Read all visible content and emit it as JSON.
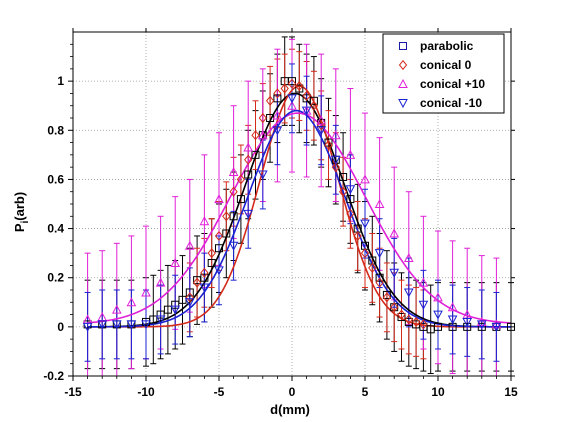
{
  "chart_data": {
    "type": "scatter",
    "xlabel": "d(mm)",
    "ylabel_main": "P",
    "ylabel_sub": "i",
    "ylabel_tail": "(arb)",
    "xlim": [
      -15,
      15
    ],
    "ylim": [
      -0.2,
      1.2
    ],
    "xticks": [
      -15,
      -10,
      -5,
      0,
      5,
      10,
      15
    ],
    "yticks": [
      -0.2,
      0,
      0.2,
      0.4,
      0.6,
      0.8,
      1
    ],
    "ytick_labels": [
      "-0.2",
      "0",
      "0.2",
      "0.4",
      "0.6",
      "0.8",
      "1"
    ],
    "grid": true,
    "legend_position": "top-right",
    "series": [
      {
        "name": "parabolic",
        "color": "#000000",
        "legend_color": "#1a1aa6",
        "marker": "square",
        "fit": {
          "amplitude": 0.95,
          "center": 0.2,
          "sigma": 3.4,
          "offset": 0.0
        },
        "x": [
          -14,
          -13,
          -12,
          -11,
          -10,
          -9.5,
          -9,
          -8.5,
          -8,
          -7.5,
          -7,
          -6.5,
          -6,
          -5.5,
          -5,
          -4.5,
          -4,
          -3.5,
          -3,
          -2.5,
          -2,
          -1.5,
          -1,
          -0.5,
          0,
          0.5,
          1,
          1.5,
          2,
          2.5,
          3,
          3.5,
          4,
          4.5,
          5,
          5.5,
          6,
          6.5,
          7,
          7.5,
          8,
          8.5,
          9,
          9.5,
          10,
          11,
          12,
          13,
          14,
          15
        ],
        "y": [
          0.01,
          0.01,
          0.01,
          0.01,
          0.02,
          0.03,
          0.05,
          0.07,
          0.09,
          0.11,
          0.14,
          0.19,
          0.2,
          0.26,
          0.32,
          0.38,
          0.45,
          0.52,
          0.62,
          0.7,
          0.78,
          0.85,
          0.93,
          1.0,
          1.0,
          0.97,
          0.93,
          0.92,
          0.83,
          0.75,
          0.68,
          0.61,
          0.52,
          0.4,
          0.33,
          0.27,
          0.2,
          0.13,
          0.08,
          0.04,
          0.02,
          0.01,
          0.0,
          -0.01,
          0.0,
          0.0,
          0.0,
          0.0,
          0.0,
          0.0
        ],
        "err": 0.18
      },
      {
        "name": "conical 0",
        "color": "#d42a1a",
        "legend_color": "#d42a1a",
        "marker": "diamond",
        "fit": {
          "amplitude": 0.98,
          "center": 0.5,
          "sigma": 2.7,
          "offset": 0.0
        },
        "x": [
          -7,
          -6.5,
          -6,
          -5.5,
          -5,
          -4.5,
          -4,
          -3.5,
          -3,
          -2.5,
          -2,
          -1.5,
          -1,
          -0.5,
          0,
          0.5,
          1,
          1.5,
          2,
          2.5,
          3,
          3.5,
          4,
          4.5,
          5,
          5.5,
          6,
          6.5,
          7,
          7.5,
          8,
          8.5,
          9
        ],
        "y": [
          0.12,
          0.18,
          0.22,
          0.3,
          0.37,
          0.45,
          0.55,
          0.6,
          0.68,
          0.78,
          0.85,
          0.92,
          0.95,
          0.97,
          0.99,
          0.98,
          0.94,
          0.9,
          0.82,
          0.74,
          0.65,
          0.55,
          0.46,
          0.37,
          0.3,
          0.24,
          0.18,
          0.12,
          0.08,
          0.05,
          0.03,
          0.02,
          0.01
        ],
        "err": 0.14
      },
      {
        "name": "conical +10",
        "color": "#e020d8",
        "legend_color": "#e020d8",
        "marker": "triangle-up",
        "fit": {
          "amplitude": 0.86,
          "center": 0.4,
          "sigma": 4.6,
          "offset": 0.01
        },
        "x": [
          -14,
          -13,
          -12,
          -11,
          -10,
          -9,
          -8,
          -7,
          -6,
          -5,
          -4,
          -3,
          -2,
          -1,
          0,
          1,
          2,
          3,
          4,
          5,
          6,
          7,
          8,
          9,
          10,
          11,
          12,
          13,
          14
        ],
        "y": [
          0.03,
          0.04,
          0.07,
          0.1,
          0.14,
          0.18,
          0.26,
          0.33,
          0.43,
          0.52,
          0.63,
          0.73,
          0.78,
          0.86,
          0.9,
          0.88,
          0.84,
          0.78,
          0.7,
          0.6,
          0.5,
          0.38,
          0.28,
          0.18,
          0.12,
          0.08,
          0.05,
          0.02,
          0.01
        ],
        "err": 0.27
      },
      {
        "name": "conical -10",
        "color": "#1a22d2",
        "legend_color": "#1a22d2",
        "marker": "triangle-down",
        "fit": {
          "amplitude": 0.88,
          "center": 0.3,
          "sigma": 3.3,
          "offset": 0.0
        },
        "x": [
          -14,
          -13,
          -12,
          -11,
          -10,
          -9,
          -8,
          -7,
          -6,
          -5,
          -4,
          -3,
          -2,
          -1,
          0,
          1,
          2,
          3,
          4,
          5,
          6,
          7,
          8,
          9,
          10,
          11,
          12,
          13,
          14
        ],
        "y": [
          0.0,
          0.01,
          0.01,
          0.01,
          0.01,
          0.03,
          0.07,
          0.1,
          0.16,
          0.23,
          0.33,
          0.46,
          0.62,
          0.8,
          0.93,
          0.88,
          0.8,
          0.68,
          0.56,
          0.42,
          0.3,
          0.22,
          0.14,
          0.09,
          0.05,
          0.03,
          0.02,
          0.01,
          0.0
        ],
        "err": 0.14
      }
    ]
  }
}
